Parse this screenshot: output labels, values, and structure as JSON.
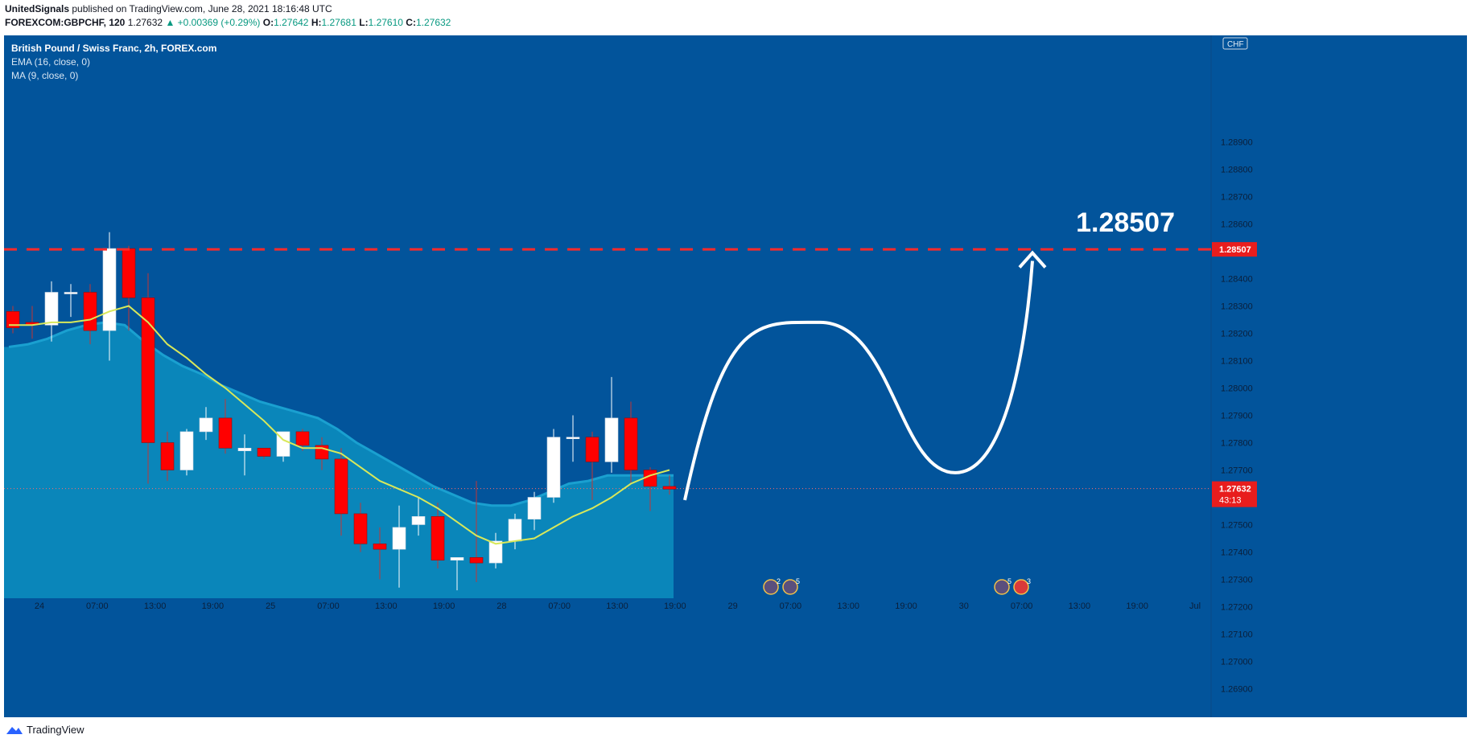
{
  "header": {
    "author": "UnitedSignals",
    "published_text": " published on TradingView.com, June 28, 2021 18:16:48 UTC",
    "symbol_line": "FOREXCOM:GBPCHF, 120",
    "last": "1.27632",
    "change": "▲ +0.00369 (+0.29%)",
    "o_label": "O:",
    "o": "1.27642",
    "h_label": "H:",
    "h": "1.27681",
    "l_label": "L:",
    "l": "1.27610",
    "c_label": "C:",
    "c": "1.27632"
  },
  "legend": {
    "symbol": "British Pound / Swiss Franc, 2h, FOREX.com",
    "ema": "EMA (16, close, 0)",
    "ma": "MA (9, close, 0)"
  },
  "footer": {
    "brand": "TradingView"
  },
  "colors": {
    "background": "#02549b",
    "up_candle": "#ffffff",
    "down_candle": "#ff0000",
    "ema_fill": "#0a86ba",
    "ema_line": "#1aa0d0",
    "ma_line": "#d8e85a",
    "target_line": "#ff2a2a",
    "projection": "#ffffff",
    "axis_text": "#0b1f3a"
  },
  "chart_data": {
    "type": "candlestick",
    "title": "British Pound / Swiss Franc, 2h, FOREX.com",
    "currency_badge": "CHF",
    "ylim": [
      1.269,
      1.29
    ],
    "y_ticks": [
      "1.26900",
      "1.27000",
      "1.27100",
      "1.27200",
      "1.27300",
      "1.27400",
      "1.27500",
      "1.27600",
      "1.27700",
      "1.27800",
      "1.27900",
      "1.28000",
      "1.28100",
      "1.28200",
      "1.28300",
      "1.28400",
      "1.28500",
      "1.28600",
      "1.28700",
      "1.28800",
      "1.28900"
    ],
    "x_ticks": [
      "24",
      "07:00",
      "13:00",
      "19:00",
      "25",
      "07:00",
      "13:00",
      "19:00",
      "28",
      "07:00",
      "13:00",
      "19:00",
      "29",
      "07:00",
      "13:00",
      "19:00",
      "30",
      "07:00",
      "13:00",
      "19:00",
      "Jul"
    ],
    "candles": [
      {
        "o": 1.2828,
        "h": 1.283,
        "l": 1.282,
        "c": 1.2822
      },
      {
        "o": 1.2824,
        "h": 1.283,
        "l": 1.2818,
        "c": 1.2823
      },
      {
        "o": 1.2823,
        "h": 1.2839,
        "l": 1.2817,
        "c": 1.2835
      },
      {
        "o": 1.2835,
        "h": 1.2838,
        "l": 1.2826,
        "c": 1.2835
      },
      {
        "o": 1.2835,
        "h": 1.2838,
        "l": 1.2816,
        "c": 1.2821
      },
      {
        "o": 1.2821,
        "h": 1.2857,
        "l": 1.281,
        "c": 1.2851
      },
      {
        "o": 1.2851,
        "h": 1.2852,
        "l": 1.2821,
        "c": 1.2833
      },
      {
        "o": 1.2833,
        "h": 1.2842,
        "l": 1.2765,
        "c": 1.278
      },
      {
        "o": 1.278,
        "h": 1.2784,
        "l": 1.2766,
        "c": 1.277
      },
      {
        "o": 1.277,
        "h": 1.2785,
        "l": 1.2768,
        "c": 1.2784
      },
      {
        "o": 1.2784,
        "h": 1.2793,
        "l": 1.2781,
        "c": 1.2789
      },
      {
        "o": 1.2789,
        "h": 1.2796,
        "l": 1.2776,
        "c": 1.2778
      },
      {
        "o": 1.2777,
        "h": 1.2783,
        "l": 1.2768,
        "c": 1.2778
      },
      {
        "o": 1.2778,
        "h": 1.2778,
        "l": 1.2774,
        "c": 1.2775
      },
      {
        "o": 1.2775,
        "h": 1.2783,
        "l": 1.2773,
        "c": 1.2784
      },
      {
        "o": 1.2784,
        "h": 1.2785,
        "l": 1.2777,
        "c": 1.2779
      },
      {
        "o": 1.2779,
        "h": 1.2782,
        "l": 1.277,
        "c": 1.2774
      },
      {
        "o": 1.2774,
        "h": 1.2778,
        "l": 1.2746,
        "c": 1.2754
      },
      {
        "o": 1.2754,
        "h": 1.2758,
        "l": 1.274,
        "c": 1.2743
      },
      {
        "o": 1.2743,
        "h": 1.2749,
        "l": 1.273,
        "c": 1.2741
      },
      {
        "o": 1.2741,
        "h": 1.2757,
        "l": 1.2727,
        "c": 1.2749
      },
      {
        "o": 1.275,
        "h": 1.276,
        "l": 1.2746,
        "c": 1.2753
      },
      {
        "o": 1.2753,
        "h": 1.2758,
        "l": 1.2734,
        "c": 1.2737
      },
      {
        "o": 1.2737,
        "h": 1.2737,
        "l": 1.2726,
        "c": 1.2738
      },
      {
        "o": 1.2738,
        "h": 1.2766,
        "l": 1.2729,
        "c": 1.2736
      },
      {
        "o": 1.2736,
        "h": 1.2747,
        "l": 1.2734,
        "c": 1.2744
      },
      {
        "o": 1.2744,
        "h": 1.2754,
        "l": 1.2741,
        "c": 1.2752
      },
      {
        "o": 1.2752,
        "h": 1.2762,
        "l": 1.2748,
        "c": 1.276
      },
      {
        "o": 1.276,
        "h": 1.2785,
        "l": 1.2758,
        "c": 1.2782
      },
      {
        "o": 1.2782,
        "h": 1.279,
        "l": 1.2773,
        "c": 1.2782
      },
      {
        "o": 1.2782,
        "h": 1.2784,
        "l": 1.2759,
        "c": 1.2773
      },
      {
        "o": 1.2773,
        "h": 1.2804,
        "l": 1.2769,
        "c": 1.2789
      },
      {
        "o": 1.2789,
        "h": 1.2795,
        "l": 1.2765,
        "c": 1.277
      },
      {
        "o": 1.277,
        "h": 1.2771,
        "l": 1.2755,
        "c": 1.2764
      },
      {
        "o": 1.2764,
        "h": 1.2768,
        "l": 1.2761,
        "c": 1.2763
      }
    ],
    "ema_16": [
      1.2815,
      1.2816,
      1.2818,
      1.2821,
      1.2823,
      1.2824,
      1.2823,
      1.2817,
      1.2812,
      1.2808,
      1.2805,
      1.2801,
      1.2798,
      1.2795,
      1.2793,
      1.2791,
      1.2789,
      1.2785,
      1.278,
      1.2776,
      1.2772,
      1.2768,
      1.2764,
      1.2761,
      1.2758,
      1.2757,
      1.2757,
      1.2759,
      1.2762,
      1.2765,
      1.2766,
      1.2768,
      1.2768,
      1.2768,
      1.2768
    ],
    "ma_9": [
      1.2823,
      1.2823,
      1.2824,
      1.2824,
      1.2825,
      1.2828,
      1.283,
      1.2824,
      1.2816,
      1.2811,
      1.2805,
      1.28,
      1.2794,
      1.2788,
      1.2781,
      1.2778,
      1.2778,
      1.2776,
      1.2771,
      1.2766,
      1.2763,
      1.276,
      1.2756,
      1.2751,
      1.2746,
      1.2743,
      1.2744,
      1.2745,
      1.2749,
      1.2753,
      1.2756,
      1.276,
      1.2765,
      1.2768,
      1.277
    ],
    "current_price": "1.27632",
    "countdown": "43:13",
    "target_level": {
      "value": 1.28507,
      "label": "1.28507"
    },
    "projection": [
      {
        "x": 35,
        "y": 1.2759
      },
      {
        "x": 42,
        "y": 1.2824
      },
      {
        "x": 49,
        "y": 1.2769
      },
      {
        "x": 53,
        "y": 1.285
      }
    ],
    "events": [
      {
        "badge": "2"
      },
      {
        "badge": "5"
      },
      {
        "badge": "5"
      },
      {
        "badge": "3"
      }
    ]
  }
}
